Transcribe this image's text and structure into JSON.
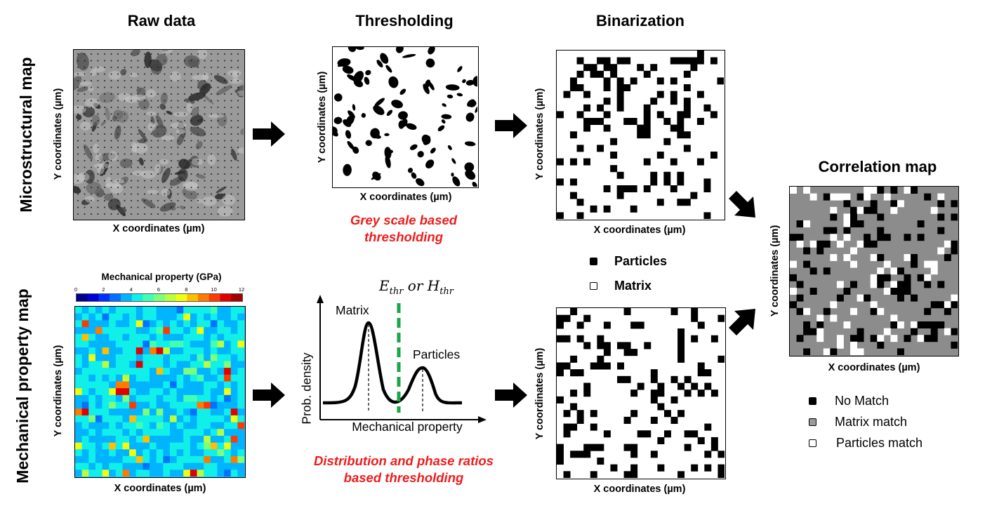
{
  "columns": {
    "raw_data": "Raw data",
    "thresholding": "Thresholding",
    "binarization": "Binarization",
    "correlation_map": "Correlation map"
  },
  "rows": {
    "microstructural": "Microstructural map",
    "mechanical": "Mechanical property map"
  },
  "axes": {
    "x": "X coordinates (µm)",
    "y": "Y coordinates (µm)"
  },
  "colorbar": {
    "title": "Mechanical  property (GPa)",
    "ticks": [
      "0",
      "2",
      "4",
      "6",
      "8",
      "10",
      "12"
    ],
    "colors": [
      "#00008f",
      "#0000d8",
      "#0030ff",
      "#0072ff",
      "#00b4ff",
      "#10f0e8",
      "#40ffb0",
      "#7cff7c",
      "#b8ff40",
      "#f0ff10",
      "#ffbe00",
      "#ff7a00",
      "#ff3a00",
      "#e00000",
      "#a00000"
    ]
  },
  "notes": {
    "grey_scale_line1": "Grey scale based",
    "grey_scale_line2": "thresholding",
    "distribution_line1": "Distribution and phase ratios",
    "distribution_line2": "based thresholding"
  },
  "distribution_plot": {
    "threshold_label": "E_thr or H_thr",
    "threshold_symbol_e": "E",
    "threshold_symbol_h": "H",
    "threshold_subscript": "thr",
    "threshold_or": "or",
    "ylabel": "Prob. density",
    "xlabel": "Mechanical  property",
    "peak_matrix": "Matrix",
    "peak_particles": "Particles",
    "threshold_color": "#1aa64a"
  },
  "binarization_legend": {
    "particles": "Particles",
    "matrix": "Matrix"
  },
  "correlation_legend": {
    "no_match": "No Match",
    "matrix_match": "Matrix match",
    "particles_match": "Particles match"
  }
}
